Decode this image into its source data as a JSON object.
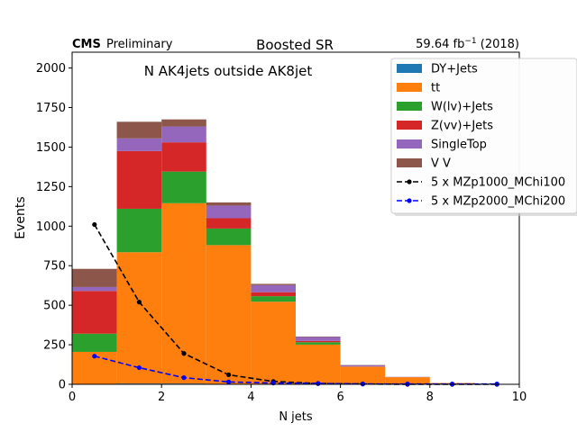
{
  "header": {
    "cms_label": "CMS",
    "preliminary_label": "Preliminary",
    "title": "Boosted SR",
    "lumi_value": "59.64 fb",
    "lumi_exponent": "−1",
    "lumi_year": "(2018)"
  },
  "annotation": "N AK4jets outside AK8jet",
  "chart_data": {
    "type": "bar",
    "stacked": true,
    "bin_edges": [
      0,
      1,
      2,
      3,
      4,
      5,
      6,
      7,
      8,
      9,
      10
    ],
    "xlabel": "N jets",
    "ylabel": "Events",
    "xlim": [
      0,
      10
    ],
    "ylim": [
      0,
      2100
    ],
    "xticks": [
      0,
      2,
      4,
      6,
      8,
      10
    ],
    "yticks": [
      0,
      250,
      500,
      750,
      1000,
      1250,
      1500,
      1750,
      2000
    ],
    "grid": false,
    "legend_position": "top-right",
    "series": [
      {
        "name": "DY+Jets",
        "color": "#1f77b4",
        "kind": "stack",
        "values": [
          0,
          5,
          5,
          3,
          2,
          1,
          0,
          0,
          0,
          0
        ]
      },
      {
        "name": "tt",
        "color": "#ff7f0e",
        "kind": "stack",
        "values": [
          205,
          830,
          1140,
          877,
          520,
          250,
          112,
          45,
          8,
          2
        ]
      },
      {
        "name": "W(lv)+Jets",
        "color": "#2ca02c",
        "kind": "stack",
        "values": [
          115,
          275,
          200,
          105,
          35,
          15,
          0,
          0,
          0,
          0
        ]
      },
      {
        "name": "Z(vv)+Jets",
        "color": "#d62728",
        "kind": "stack",
        "values": [
          270,
          365,
          185,
          65,
          25,
          8,
          0,
          0,
          0,
          0
        ]
      },
      {
        "name": "SingleTop",
        "color": "#9467bd",
        "kind": "stack",
        "values": [
          25,
          80,
          100,
          80,
          45,
          25,
          8,
          2,
          0,
          0
        ]
      },
      {
        "name": "V V",
        "color": "#8c564b",
        "kind": "stack",
        "values": [
          115,
          105,
          45,
          20,
          8,
          3,
          2,
          0,
          0,
          0
        ]
      },
      {
        "name": "5 x MZp1000_MChi100",
        "color": "#000000",
        "kind": "line",
        "x": [
          0.5,
          1.5,
          2.5,
          3.5,
          4.5,
          5.5,
          6.5,
          7.5,
          8.5,
          9.5
        ],
        "values": [
          1010,
          520,
          195,
          60,
          18,
          5,
          2,
          0,
          0,
          0
        ]
      },
      {
        "name": "5 x MZp2000_MChi200",
        "color": "#0000ff",
        "kind": "line",
        "x": [
          0.5,
          1.5,
          2.5,
          3.5,
          4.5,
          5.5,
          6.5,
          7.5,
          8.5,
          9.5
        ],
        "values": [
          178,
          105,
          42,
          15,
          8,
          5,
          2,
          2,
          2,
          2
        ]
      }
    ]
  }
}
